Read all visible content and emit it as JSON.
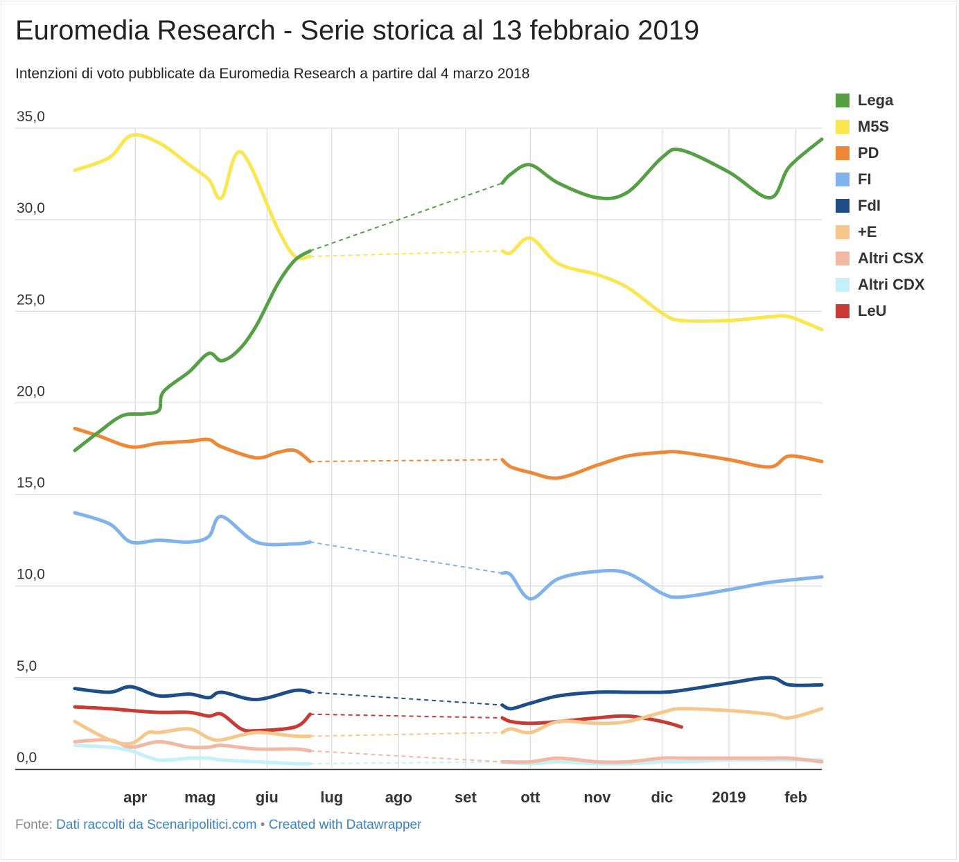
{
  "header": {
    "title": "Euromedia Research - Serie storica al 13 febbraio 2019",
    "subtitle": "Intenzioni di voto pubblicate da Euromedia Research a partire dal 4 marzo 2018"
  },
  "footer": {
    "source_prefix": "Fonte:",
    "source_link": "Dati raccolti da Scenaripolitici.com",
    "separator": "•",
    "credit_link": "Created with Datawrapper"
  },
  "chart_data": {
    "type": "line",
    "title": "Euromedia Research - Serie storica al 13 febbraio 2019",
    "subtitle": "Intenzioni di voto pubblicate da Euromedia Research a partire dal 4 marzo 2018",
    "xlabel": "",
    "ylabel": "",
    "ylim": [
      0,
      35
    ],
    "y_ticks": [
      "0,0",
      "5,0",
      "10,0",
      "15,0",
      "20,0",
      "25,0",
      "30,0",
      "35,0"
    ],
    "x_ticks": [
      {
        "date": "2018-04-01",
        "label": "apr"
      },
      {
        "date": "2018-05-01",
        "label": "mag"
      },
      {
        "date": "2018-06-01",
        "label": "giu"
      },
      {
        "date": "2018-07-01",
        "label": "lug"
      },
      {
        "date": "2018-08-01",
        "label": "ago"
      },
      {
        "date": "2018-09-01",
        "label": "set"
      },
      {
        "date": "2018-10-01",
        "label": "ott"
      },
      {
        "date": "2018-11-01",
        "label": "nov"
      },
      {
        "date": "2018-12-01",
        "label": "dic"
      },
      {
        "date": "2019-01-01",
        "label": "2019"
      },
      {
        "date": "2019-02-01",
        "label": "feb"
      }
    ],
    "x_range": [
      "2018-03-04",
      "2019-02-13"
    ],
    "grid": true,
    "legend_position": "right",
    "gap_style": "dashed line between 2018-06-21 and 2018-09-18",
    "series": [
      {
        "name": "Lega",
        "color": "#55a045",
        "points": [
          [
            "2018-03-04",
            17.4
          ],
          [
            "2018-03-15",
            18.4
          ],
          [
            "2018-03-26",
            19.3
          ],
          [
            "2018-04-05",
            19.4
          ],
          [
            "2018-04-12",
            19.6
          ],
          [
            "2018-04-14",
            20.6
          ],
          [
            "2018-04-26",
            21.7
          ],
          [
            "2018-05-05",
            22.7
          ],
          [
            "2018-05-11",
            22.3
          ],
          [
            "2018-05-19",
            22.9
          ],
          [
            "2018-05-27",
            24.2
          ],
          [
            "2018-06-06",
            26.5
          ],
          [
            "2018-06-14",
            27.8
          ],
          [
            "2018-06-21",
            28.3
          ],
          [
            "2018-09-18",
            32.0
          ],
          [
            "2018-09-22",
            32.5
          ],
          [
            "2018-10-01",
            33.0
          ],
          [
            "2018-10-14",
            32.0
          ],
          [
            "2018-11-01",
            31.2
          ],
          [
            "2018-11-15",
            31.5
          ],
          [
            "2018-12-01",
            33.4
          ],
          [
            "2018-12-10",
            33.8
          ],
          [
            "2019-01-01",
            32.6
          ],
          [
            "2019-01-20",
            31.2
          ],
          [
            "2019-01-29",
            32.9
          ],
          [
            "2019-02-13",
            34.4
          ]
        ]
      },
      {
        "name": "M5S",
        "color": "#fae74f",
        "points": [
          [
            "2018-03-04",
            32.7
          ],
          [
            "2018-03-20",
            33.4
          ],
          [
            "2018-03-30",
            34.6
          ],
          [
            "2018-04-12",
            34.2
          ],
          [
            "2018-04-26",
            33.0
          ],
          [
            "2018-05-05",
            32.2
          ],
          [
            "2018-05-11",
            31.2
          ],
          [
            "2018-05-20",
            33.7
          ],
          [
            "2018-06-06",
            29.5
          ],
          [
            "2018-06-14",
            28.0
          ],
          [
            "2018-06-21",
            28.0
          ],
          [
            "2018-09-18",
            28.3
          ],
          [
            "2018-09-22",
            28.2
          ],
          [
            "2018-10-01",
            29.0
          ],
          [
            "2018-10-14",
            27.6
          ],
          [
            "2018-11-01",
            27.0
          ],
          [
            "2018-11-15",
            26.3
          ],
          [
            "2018-12-01",
            24.9
          ],
          [
            "2018-12-10",
            24.5
          ],
          [
            "2019-01-01",
            24.5
          ],
          [
            "2019-01-20",
            24.7
          ],
          [
            "2019-01-29",
            24.7
          ],
          [
            "2019-02-13",
            24.0
          ]
        ]
      },
      {
        "name": "PD",
        "color": "#ee8836",
        "points": [
          [
            "2018-03-04",
            18.6
          ],
          [
            "2018-03-15",
            18.2
          ],
          [
            "2018-03-30",
            17.6
          ],
          [
            "2018-04-12",
            17.8
          ],
          [
            "2018-04-26",
            17.9
          ],
          [
            "2018-05-05",
            18.0
          ],
          [
            "2018-05-11",
            17.6
          ],
          [
            "2018-05-27",
            17.0
          ],
          [
            "2018-06-06",
            17.3
          ],
          [
            "2018-06-14",
            17.4
          ],
          [
            "2018-06-21",
            16.8
          ],
          [
            "2018-09-18",
            16.9
          ],
          [
            "2018-09-22",
            16.5
          ],
          [
            "2018-10-01",
            16.2
          ],
          [
            "2018-10-14",
            15.9
          ],
          [
            "2018-11-01",
            16.6
          ],
          [
            "2018-11-15",
            17.1
          ],
          [
            "2018-12-01",
            17.3
          ],
          [
            "2018-12-10",
            17.3
          ],
          [
            "2019-01-01",
            16.9
          ],
          [
            "2019-01-20",
            16.5
          ],
          [
            "2019-01-29",
            17.1
          ],
          [
            "2019-02-13",
            16.8
          ]
        ]
      },
      {
        "name": "FI",
        "color": "#80b3ec",
        "points": [
          [
            "2018-03-04",
            14.0
          ],
          [
            "2018-03-20",
            13.4
          ],
          [
            "2018-03-30",
            12.4
          ],
          [
            "2018-04-12",
            12.5
          ],
          [
            "2018-04-26",
            12.4
          ],
          [
            "2018-05-05",
            12.7
          ],
          [
            "2018-05-11",
            13.8
          ],
          [
            "2018-05-27",
            12.4
          ],
          [
            "2018-06-14",
            12.3
          ],
          [
            "2018-06-21",
            12.4
          ],
          [
            "2018-09-18",
            10.7
          ],
          [
            "2018-09-22",
            10.6
          ],
          [
            "2018-10-01",
            9.3
          ],
          [
            "2018-10-14",
            10.4
          ],
          [
            "2018-11-01",
            10.8
          ],
          [
            "2018-11-15",
            10.7
          ],
          [
            "2018-12-01",
            9.6
          ],
          [
            "2018-12-10",
            9.4
          ],
          [
            "2019-01-01",
            9.8
          ],
          [
            "2019-01-20",
            10.2
          ],
          [
            "2019-02-13",
            10.5
          ]
        ]
      },
      {
        "name": "FdI",
        "color": "#1d4e89",
        "points": [
          [
            "2018-03-04",
            4.4
          ],
          [
            "2018-03-20",
            4.2
          ],
          [
            "2018-03-30",
            4.5
          ],
          [
            "2018-04-12",
            4.0
          ],
          [
            "2018-04-26",
            4.1
          ],
          [
            "2018-05-05",
            3.9
          ],
          [
            "2018-05-11",
            4.2
          ],
          [
            "2018-05-27",
            3.8
          ],
          [
            "2018-06-14",
            4.3
          ],
          [
            "2018-06-21",
            4.2
          ],
          [
            "2018-09-18",
            3.5
          ],
          [
            "2018-09-22",
            3.3
          ],
          [
            "2018-10-01",
            3.6
          ],
          [
            "2018-10-14",
            4.0
          ],
          [
            "2018-11-01",
            4.2
          ],
          [
            "2018-11-15",
            4.2
          ],
          [
            "2018-12-01",
            4.2
          ],
          [
            "2018-12-10",
            4.3
          ],
          [
            "2019-01-01",
            4.7
          ],
          [
            "2019-01-20",
            5.0
          ],
          [
            "2019-01-29",
            4.6
          ],
          [
            "2019-02-13",
            4.6
          ]
        ]
      },
      {
        "name": "+E",
        "color": "#f6c78a",
        "points": [
          [
            "2018-03-04",
            2.6
          ],
          [
            "2018-03-20",
            1.6
          ],
          [
            "2018-03-30",
            1.4
          ],
          [
            "2018-04-07",
            2.0
          ],
          [
            "2018-04-12",
            2.0
          ],
          [
            "2018-04-26",
            2.2
          ],
          [
            "2018-05-05",
            1.7
          ],
          [
            "2018-05-11",
            1.6
          ],
          [
            "2018-05-27",
            2.0
          ],
          [
            "2018-06-14",
            1.8
          ],
          [
            "2018-06-21",
            1.8
          ],
          [
            "2018-09-18",
            2.0
          ],
          [
            "2018-09-22",
            2.2
          ],
          [
            "2018-10-01",
            2.0
          ],
          [
            "2018-10-14",
            2.6
          ],
          [
            "2018-11-01",
            2.5
          ],
          [
            "2018-11-15",
            2.6
          ],
          [
            "2018-12-01",
            3.1
          ],
          [
            "2018-12-10",
            3.3
          ],
          [
            "2019-01-01",
            3.2
          ],
          [
            "2019-01-20",
            3.0
          ],
          [
            "2019-01-29",
            2.8
          ],
          [
            "2019-02-13",
            3.3
          ]
        ]
      },
      {
        "name": "Altri CSX",
        "color": "#f2b8a3",
        "points": [
          [
            "2018-03-04",
            1.5
          ],
          [
            "2018-03-20",
            1.6
          ],
          [
            "2018-03-30",
            1.2
          ],
          [
            "2018-04-12",
            1.5
          ],
          [
            "2018-04-26",
            1.2
          ],
          [
            "2018-05-05",
            1.2
          ],
          [
            "2018-05-11",
            1.3
          ],
          [
            "2018-05-27",
            1.1
          ],
          [
            "2018-06-14",
            1.1
          ],
          [
            "2018-06-21",
            1.0
          ],
          [
            "2018-09-18",
            0.4
          ],
          [
            "2018-10-01",
            0.4
          ],
          [
            "2018-10-14",
            0.6
          ],
          [
            "2018-11-01",
            0.4
          ],
          [
            "2018-11-15",
            0.4
          ],
          [
            "2018-12-01",
            0.6
          ],
          [
            "2018-12-10",
            0.6
          ],
          [
            "2019-01-01",
            0.6
          ],
          [
            "2019-01-20",
            0.6
          ],
          [
            "2019-01-29",
            0.6
          ],
          [
            "2019-02-13",
            0.4
          ]
        ]
      },
      {
        "name": "Altri CDX",
        "color": "#c4f0f9",
        "points": [
          [
            "2018-03-04",
            1.3
          ],
          [
            "2018-03-20",
            1.2
          ],
          [
            "2018-03-30",
            1.0
          ],
          [
            "2018-04-12",
            0.5
          ],
          [
            "2018-04-26",
            0.6
          ],
          [
            "2018-05-05",
            0.6
          ],
          [
            "2018-05-11",
            0.5
          ],
          [
            "2018-05-27",
            0.4
          ],
          [
            "2018-06-14",
            0.3
          ],
          [
            "2018-06-21",
            0.3
          ],
          [
            "2018-09-18",
            0.4
          ],
          [
            "2018-10-01",
            0.3
          ],
          [
            "2018-10-14",
            0.4
          ],
          [
            "2018-11-01",
            0.3
          ],
          [
            "2018-11-15",
            0.3
          ],
          [
            "2018-12-01",
            0.4
          ],
          [
            "2018-12-10",
            0.4
          ],
          [
            "2019-01-01",
            0.5
          ],
          [
            "2019-01-20",
            0.5
          ],
          [
            "2019-02-13",
            0.5
          ]
        ]
      },
      {
        "name": "LeU",
        "color": "#c93a35",
        "points": [
          [
            "2018-03-04",
            3.4
          ],
          [
            "2018-03-20",
            3.3
          ],
          [
            "2018-03-30",
            3.2
          ],
          [
            "2018-04-12",
            3.1
          ],
          [
            "2018-04-26",
            3.1
          ],
          [
            "2018-05-05",
            2.9
          ],
          [
            "2018-05-11",
            3.0
          ],
          [
            "2018-05-20",
            2.2
          ],
          [
            "2018-05-27",
            2.1
          ],
          [
            "2018-06-14",
            2.3
          ],
          [
            "2018-06-21",
            3.0
          ],
          [
            "2018-09-18",
            2.8
          ],
          [
            "2018-09-22",
            2.6
          ],
          [
            "2018-10-01",
            2.5
          ],
          [
            "2018-10-14",
            2.6
          ],
          [
            "2018-11-01",
            2.8
          ],
          [
            "2018-11-15",
            2.9
          ],
          [
            "2018-12-01",
            2.6
          ],
          [
            "2018-12-10",
            2.3
          ]
        ]
      }
    ]
  }
}
